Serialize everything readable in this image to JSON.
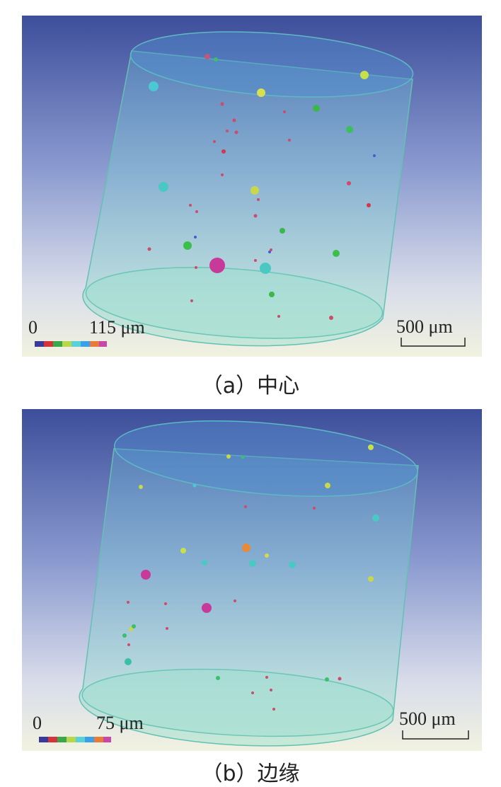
{
  "panels": [
    {
      "id": "a",
      "caption": "（a）中心",
      "colorbar": {
        "min_label": "0",
        "max_label": "115 μm"
      },
      "scalebar": {
        "label": "500 μm"
      }
    },
    {
      "id": "b",
      "caption": "（b）边缘",
      "colorbar": {
        "min_label": "0",
        "max_label": "75 μm"
      },
      "scalebar": {
        "label": "500 μm"
      }
    }
  ],
  "colors": {
    "background_top": "#3f4f9c",
    "background_bottom": "#f1f2e1",
    "cylinder_side": "#8fd0c6",
    "cylinder_edge": "#5fbfae",
    "colorbar": [
      "#3a3a9a",
      "#d4343a",
      "#3aa84a",
      "#b8d84a",
      "#5ad0d8",
      "#3aa0e8",
      "#e87a3a",
      "#c848a8"
    ]
  }
}
